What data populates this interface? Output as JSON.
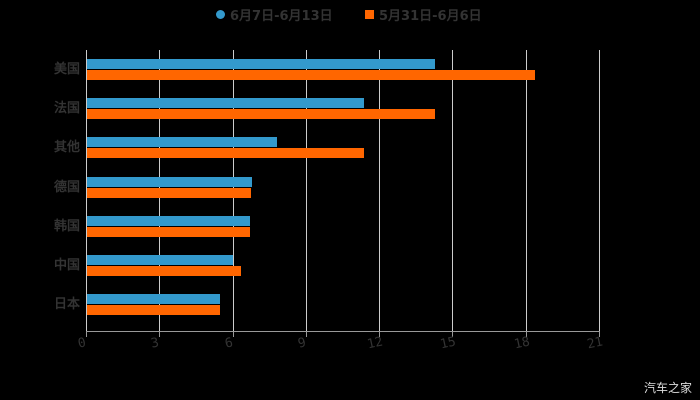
{
  "chart_data": {
    "type": "bar",
    "orientation": "horizontal",
    "title": "",
    "categories": [
      "美国",
      "法国",
      "其他",
      "德国",
      "韩国",
      "中国",
      "日本"
    ],
    "series": [
      {
        "name": "6月7日-6月13日",
        "color": "#3399cc",
        "values": [
          14.3,
          11.4,
          7.8,
          6.8,
          6.7,
          6.0,
          5.5
        ]
      },
      {
        "name": "5月31日-6月6日",
        "color": "#ff6600",
        "values": [
          18.4,
          14.3,
          11.4,
          6.75,
          6.7,
          6.35,
          5.5
        ]
      }
    ],
    "xlabel": "",
    "ylabel": "",
    "xlim": [
      0,
      21
    ],
    "xticks": [
      0,
      3,
      6,
      9,
      12,
      15,
      18,
      21
    ],
    "grid": true,
    "legend_position": "top"
  },
  "legend": {
    "series1": "6月7日-6月13日",
    "series2": "5月31日-6月6日"
  },
  "ticks": [
    "0",
    "3",
    "6",
    "9",
    "12",
    "15",
    "18",
    "21"
  ],
  "categories": [
    "美国",
    "法国",
    "其他",
    "德国",
    "韩国",
    "中国",
    "日本"
  ],
  "watermark": "汽车之家"
}
